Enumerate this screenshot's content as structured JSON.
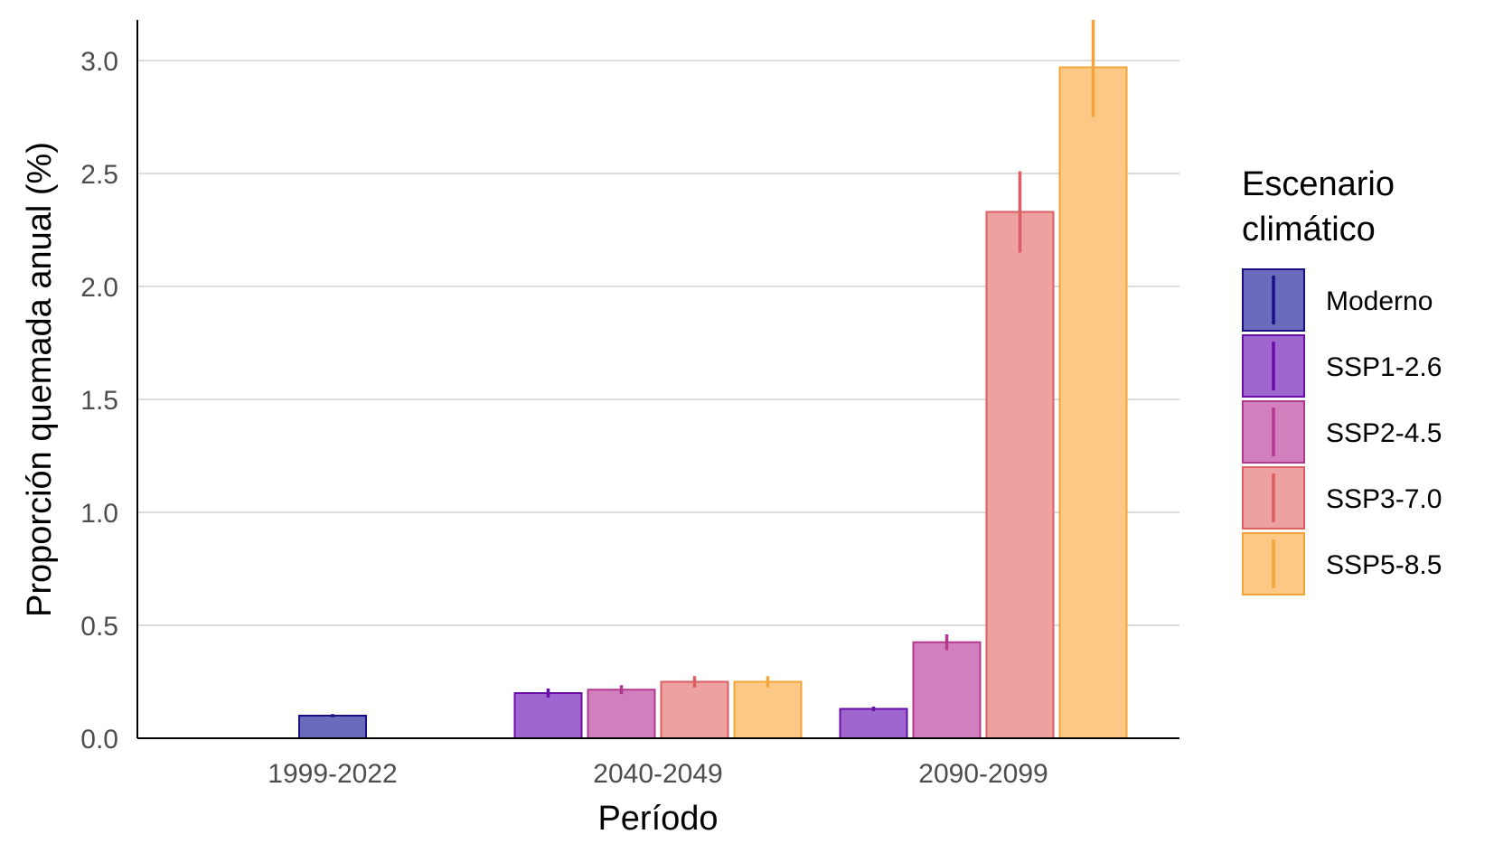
{
  "chart_data": {
    "type": "bar",
    "xlabel": "Período",
    "ylabel": "Proporción quemada anual (%)",
    "ylim": [
      0,
      3.18
    ],
    "yticks": [
      "0.0",
      "0.5",
      "1.0",
      "1.5",
      "2.0",
      "2.5",
      "3.0"
    ],
    "ytick_values": [
      0,
      0.5,
      1.0,
      1.5,
      2.0,
      2.5,
      3.0
    ],
    "grid": "horizontal",
    "legend_placement": "right",
    "legend": {
      "title_line1": "Escenario",
      "title_line2": "climático"
    },
    "categories": [
      "1999-2022",
      "2040-2049",
      "2090-2099"
    ],
    "series": [
      {
        "name": "Moderno",
        "fill": "#6b6bbd",
        "stroke": "#1a0f87",
        "values": [
          0.1,
          null,
          null
        ],
        "err_low": [
          0.093,
          null,
          null
        ],
        "err_high": [
          0.107,
          null,
          null
        ]
      },
      {
        "name": "SSP1-2.6",
        "fill": "#a066cf",
        "stroke": "#6a0ea8",
        "values": [
          null,
          0.2,
          0.13
        ],
        "err_low": [
          null,
          0.18,
          0.12
        ],
        "err_high": [
          null,
          0.22,
          0.14
        ]
      },
      {
        "name": "SSP2-4.5",
        "fill": "#d17fbd",
        "stroke": "#b3388f",
        "values": [
          null,
          0.215,
          0.425
        ],
        "err_low": [
          null,
          0.195,
          0.39
        ],
        "err_high": [
          null,
          0.235,
          0.46
        ]
      },
      {
        "name": "SSP3-7.0",
        "fill": "#eda1a1",
        "stroke": "#dc5e63",
        "values": [
          null,
          0.25,
          2.33
        ],
        "err_low": [
          null,
          0.225,
          2.15
        ],
        "err_high": [
          null,
          0.275,
          2.51
        ]
      },
      {
        "name": "SSP5-8.5",
        "fill": "#fbc985",
        "stroke": "#f5a43a",
        "values": [
          null,
          0.25,
          2.97
        ],
        "err_low": [
          null,
          0.225,
          2.75
        ],
        "err_high": [
          null,
          0.275,
          3.18
        ]
      }
    ]
  }
}
